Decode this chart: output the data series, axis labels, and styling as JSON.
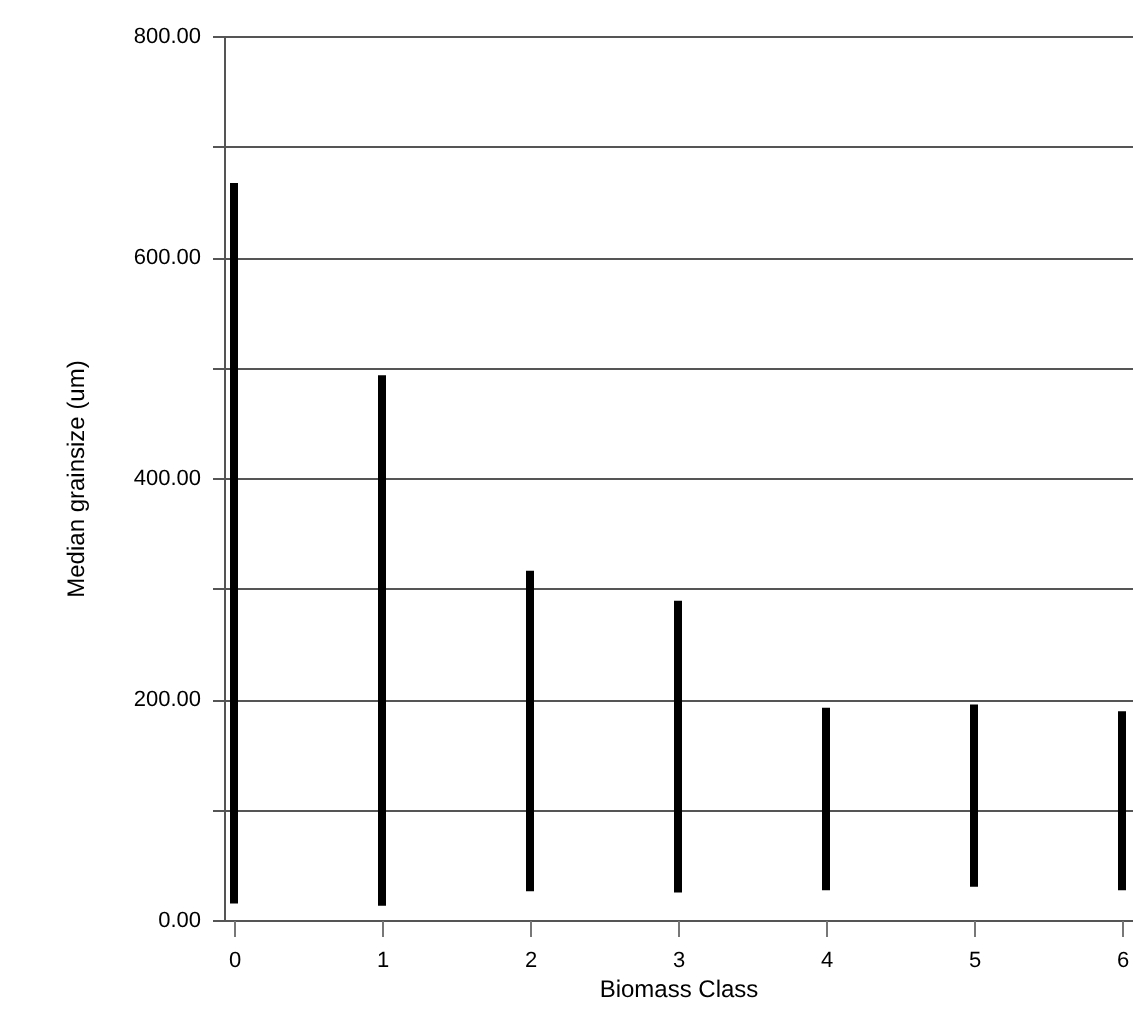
{
  "chart_data": {
    "type": "bar",
    "xlabel": "Biomass Class",
    "ylabel": "Median grainsize (um)",
    "x": [
      0,
      1,
      2,
      3,
      4,
      5,
      6
    ],
    "base": [
      15,
      13,
      26,
      25,
      27,
      30,
      27
    ],
    "values": [
      652,
      480,
      290,
      264,
      165,
      165,
      162
    ],
    "color": "#000000",
    "xlim": [
      0,
      6
    ],
    "xticks": [
      0,
      1,
      2,
      3,
      4,
      5,
      6
    ],
    "ylim": [
      0,
      800
    ],
    "yticks": [
      {
        "value": 0,
        "label": "0.00"
      },
      {
        "value": 100,
        "label": null
      },
      {
        "value": 200,
        "label": "200.00"
      },
      {
        "value": 300,
        "label": null
      },
      {
        "value": 400,
        "label": "400.00"
      },
      {
        "value": 500,
        "label": null
      },
      {
        "value": 600,
        "label": "600.00"
      },
      {
        "value": 700,
        "label": null
      },
      {
        "value": 800,
        "label": "800.00"
      }
    ],
    "grid": "y"
  }
}
